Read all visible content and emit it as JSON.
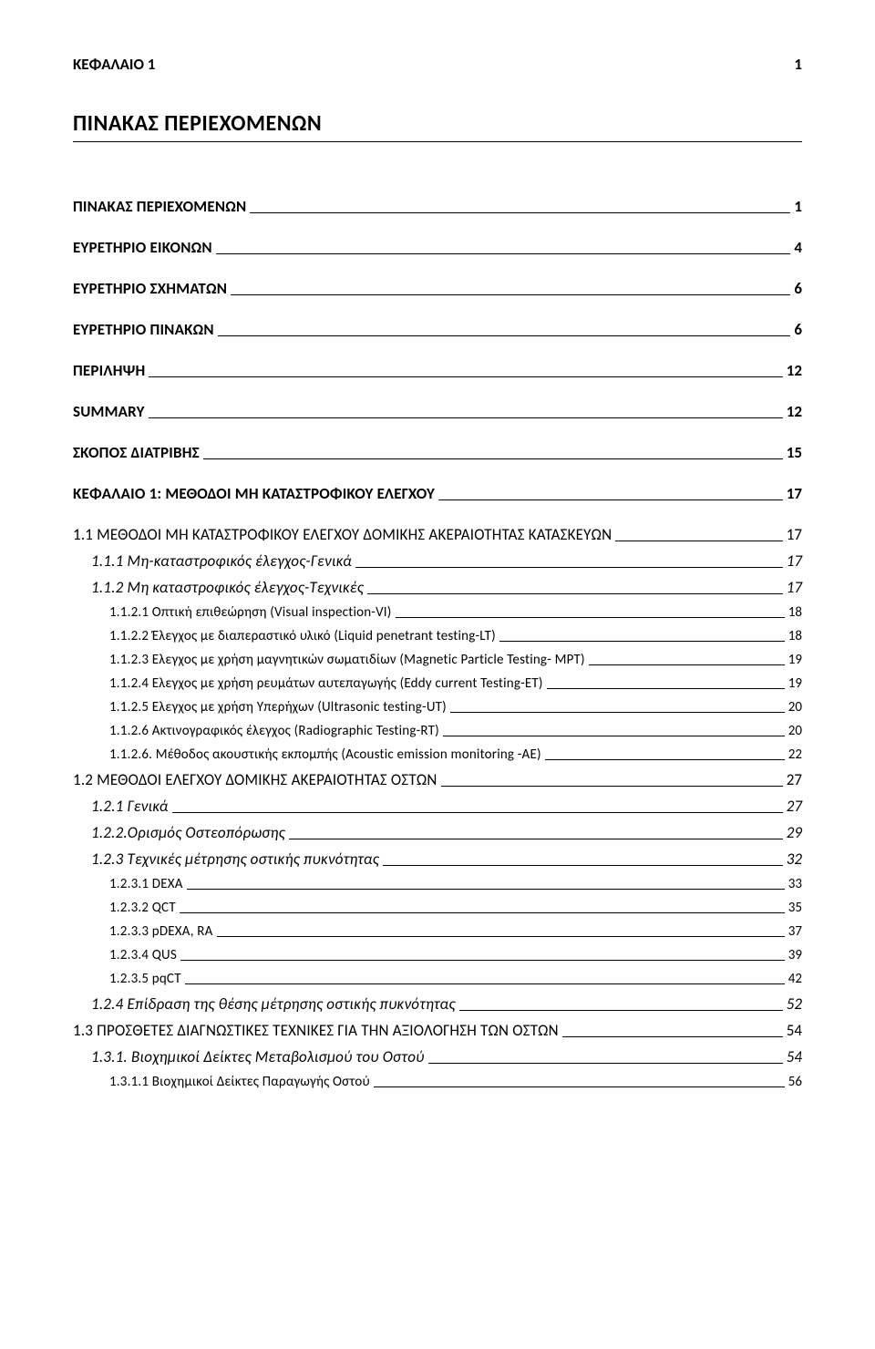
{
  "header": {
    "chapter": "ΚΕΦΑΛΑΙΟ 1",
    "pagenum": "1"
  },
  "title": "ΠΙΝΑΚΑΣ ΠΕΡΙΕΧΟΜΕΝΩΝ",
  "toc": [
    {
      "level": 0,
      "label": "ΠΙΝΑΚΑΣ ΠΕΡΙΕΧΟΜΕΝΩΝ",
      "page": "1"
    },
    {
      "level": 0,
      "label": "ΕΥΡΕΤΗΡΙΟ ΕΙΚΟΝΩΝ",
      "page": "4"
    },
    {
      "level": 0,
      "label": "ΕΥΡΕΤΗΡΙΟ ΣΧΗΜΑΤΩΝ",
      "page": "6"
    },
    {
      "level": 0,
      "label": "ΕΥΡΕΤΗΡΙΟ ΠΙΝΑΚΩΝ",
      "page": "6"
    },
    {
      "level": 0,
      "label": "ΠΕΡΙΛΗΨΗ",
      "page": "12"
    },
    {
      "level": 0,
      "label": "SUMMARY",
      "page": "12"
    },
    {
      "level": 0,
      "label": "ΣΚΟΠΟΣ ΔΙΑΤΡΙΒΗΣ",
      "page": "15"
    },
    {
      "level": 0,
      "label": "ΚΕΦΑΛΑΙΟ 1: ΜΕΘΟΔΟΙ ΜΗ ΚΑΤΑΣΤΡΟΦΙΚΟΥ ΕΛΕΓΧΟΥ",
      "page": "17"
    },
    {
      "level": 1,
      "smallcaps": true,
      "label": "1.1 ΜΕΘΟΔΟΙ ΜΗ ΚΑΤΑΣΤΡΟΦΙΚΟΥ ΕΛΕΓΧΟΥ ΔΟΜΙΚΗΣ ΑΚΕΡΑΙΟΤΗΤΑΣ ΚΑΤΑΣΚΕΥΩΝ",
      "page": "17"
    },
    {
      "level": 2,
      "label": "1.1.1 Μη-καταστροφικός έλεγχος-Γενικά",
      "page": "17"
    },
    {
      "level": 2,
      "label": "1.1.2 Μη καταστροφικός έλεγχος-Τεχνικές",
      "page": "17"
    },
    {
      "level": 3,
      "label": "1.1.2.1 Οπτική επιθεώρηση (Visual inspection-VI)",
      "page": "18"
    },
    {
      "level": 3,
      "label": "1.1.2.2 Έλεγχος με διαπεραστικό υλικό (Liquid penetrant testing-LT)",
      "page": "18"
    },
    {
      "level": 3,
      "label": "1.1.2.3 Ελεγχος με χρήση μαγνητικών σωματιδίων (Magnetic Particle Testing- MPT)",
      "page": "19"
    },
    {
      "level": 3,
      "label": "1.1.2.4 Ελεγχος με χρήση ρευμάτων αυτεπαγωγής (Eddy current Testing-ET)",
      "page": "19"
    },
    {
      "level": 3,
      "label": "1.1.2.5 Ελεγχος με χρήση Υπερήχων (Ultrasonic testing-UT)",
      "page": "20"
    },
    {
      "level": 3,
      "label": "1.1.2.6 Ακτινογραφικός έλεγχος (Radiographic Testing-RT)",
      "page": "20"
    },
    {
      "level": 3,
      "label": "1.1.2.6. Μέθοδος ακουστικής εκπομπής (Acoustic emission monitoring -AE)",
      "page": "22"
    },
    {
      "level": 1,
      "smallcaps": true,
      "label": "1.2 ΜΕΘΟΔΟΙ ΕΛΕΓΧΟΥ ΔΟΜΙΚΗΣ ΑΚΕΡΑΙΟΤΗΤΑΣ ΟΣΤΩΝ",
      "page": "27"
    },
    {
      "level": 2,
      "label": "1.2.1 Γενικά",
      "page": "27"
    },
    {
      "level": 2,
      "label": "1.2.2.Ορισμός Οστεοπόρωσης",
      "page": "29"
    },
    {
      "level": 2,
      "label": "1.2.3 Τεχνικές μέτρησης οστικής πυκνότητας",
      "page": "32"
    },
    {
      "level": 3,
      "label": "1.2.3.1 DEXA",
      "page": "33"
    },
    {
      "level": 3,
      "label": "1.2.3.2 QCT",
      "page": "35"
    },
    {
      "level": 3,
      "label": "1.2.3.3 pDEXA, RA",
      "page": "37"
    },
    {
      "level": 3,
      "label": "1.2.3.4 QUS",
      "page": "39"
    },
    {
      "level": 3,
      "label": "1.2.3.5 pqCT",
      "page": "42"
    },
    {
      "level": 2,
      "label": "1.2.4 Επίδραση της θέσης μέτρησης οστικής πυκνότητας",
      "page": "52"
    },
    {
      "level": 1,
      "label": "1.3 ΠΡΟΣΘΕΤΕΣ ΔΙΑΓΝΩΣΤΙΚΕΣ ΤΕΧΝΙΚΕΣ ΓΙΑ ΤΗΝ ΑΞΙΟΛΟΓΗΣΗ ΤΩΝ ΟΣΤΩΝ",
      "page": "54"
    },
    {
      "level": 2,
      "label": "1.3.1. Βιοχημικοί Δείκτες Μεταβολισμού του Οστού",
      "page": "54"
    },
    {
      "level": 3,
      "label": "1.3.1.1 Βιοχημικοί Δείκτες Παραγωγής Οστού",
      "page": "56"
    }
  ]
}
